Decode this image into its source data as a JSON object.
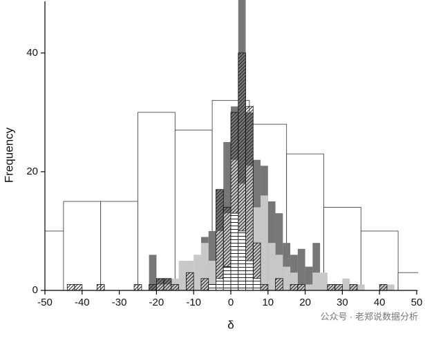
{
  "chart_data": {
    "type": "histogram",
    "x_label": "δ",
    "y_label": "Frequency",
    "watermark": "公众号 · 老郑说数据分析",
    "xlim": [
      -50,
      50
    ],
    "ylim": [
      0,
      48
    ],
    "xticks": [
      -50,
      -40,
      -30,
      -20,
      -10,
      0,
      10,
      20,
      30,
      40,
      50
    ],
    "yticks": [
      0,
      20,
      40
    ],
    "series": [
      {
        "color": "#ffffff",
        "stroke": "#333333",
        "pattern": "none",
        "bins": [
          -55,
          -45,
          -35,
          -25,
          -15,
          -5,
          5,
          15,
          25,
          35,
          45,
          55
        ],
        "counts": [
          10,
          15,
          15,
          30,
          27,
          32,
          28,
          23,
          14,
          10,
          3
        ]
      },
      {
        "color": "#777777",
        "stroke": "none",
        "pattern": "none",
        "bins": [
          -22,
          -20,
          -18,
          -16,
          -14,
          -12,
          -10,
          -8,
          -6,
          -4,
          -2,
          0,
          2,
          4,
          6,
          8,
          10,
          12,
          14,
          16,
          18,
          20,
          22,
          24
        ],
        "counts": [
          6,
          2,
          2,
          1,
          0,
          0,
          0,
          9,
          10,
          17,
          25,
          31,
          49,
          30,
          22,
          21,
          15,
          13,
          8,
          6,
          7,
          4,
          8
        ]
      },
      {
        "color": "#c8c8c8",
        "stroke": "none",
        "pattern": "none",
        "bins": [
          -20,
          -18,
          -16,
          -14,
          -12,
          -10,
          -8,
          -6,
          -4,
          -2,
          0,
          2,
          4,
          6,
          8,
          10,
          12,
          14,
          16,
          18,
          20,
          22,
          24,
          26,
          28,
          30,
          32,
          34,
          36,
          38,
          40,
          42,
          44
        ],
        "counts": [
          1,
          1,
          2,
          5,
          5,
          6,
          8,
          5,
          10,
          13,
          22,
          18,
          21,
          14,
          16,
          8,
          6,
          4,
          3,
          1,
          1,
          3,
          3,
          1,
          1,
          2,
          1,
          1,
          0,
          0,
          1,
          1
        ]
      },
      {
        "color": "#222222",
        "stroke": "#111111",
        "pattern": "diagonal",
        "bins": [
          -44,
          -42,
          -40,
          -38,
          -36,
          -34,
          -32,
          -30,
          -28,
          -26,
          -24,
          -22,
          -20,
          -18,
          -16,
          -14,
          -12,
          -10,
          -8,
          -6,
          -4,
          -2,
          0,
          2,
          4,
          6,
          8,
          10,
          12,
          14,
          16,
          18,
          20,
          22,
          24,
          26,
          28,
          30,
          32,
          34,
          36,
          38,
          40,
          42,
          44
        ],
        "counts": [
          1,
          1,
          0,
          0,
          1,
          0,
          0,
          0,
          0,
          1,
          0,
          1,
          2,
          2,
          1,
          0,
          3,
          0,
          2,
          1,
          17,
          14,
          30,
          40,
          31,
          8,
          1,
          0,
          2,
          0,
          1,
          1,
          0,
          0,
          0,
          1,
          1,
          0,
          1,
          0,
          0,
          0,
          1,
          0
        ]
      },
      {
        "color": "#222222",
        "stroke": "#111111",
        "pattern": "grid",
        "bins": [
          -6,
          -4,
          -2,
          0,
          2,
          4,
          6,
          8
        ],
        "counts": [
          1,
          2,
          4,
          13,
          10,
          5,
          2
        ]
      }
    ]
  }
}
